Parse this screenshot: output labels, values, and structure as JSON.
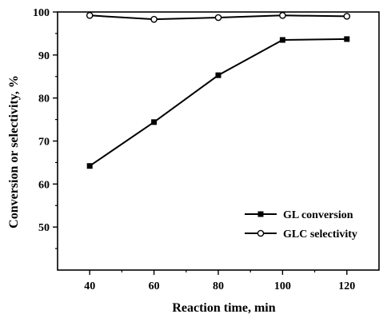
{
  "chart_data": {
    "type": "line",
    "xlabel": "Reaction time, min",
    "ylabel": "Conversion or selectivity, %",
    "xlim": [
      30,
      130
    ],
    "ylim": [
      40,
      100
    ],
    "x": [
      40,
      60,
      80,
      100,
      120
    ],
    "x_ticks": [
      "40",
      "60",
      "80",
      "100",
      "120"
    ],
    "y_ticks": [
      "50",
      "60",
      "70",
      "80",
      "90",
      "100"
    ],
    "grid": false,
    "legend_position": "bottom-right",
    "series": [
      {
        "name": "GL conversion",
        "marker": "filled-square",
        "color": "#000000",
        "values": [
          64.2,
          74.4,
          85.3,
          93.5,
          93.7
        ]
      },
      {
        "name": "GLC selectivity",
        "marker": "open-circle",
        "color": "#000000",
        "values": [
          99.2,
          98.3,
          98.7,
          99.2,
          99.0
        ]
      }
    ]
  }
}
